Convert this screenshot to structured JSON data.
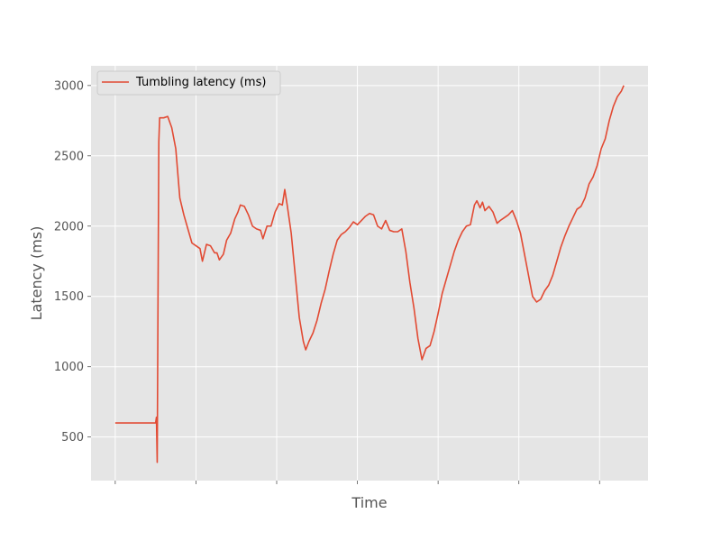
{
  "chart_data": {
    "type": "line",
    "xlabel": "Time",
    "ylabel": "Latency (ms)",
    "x_tick_labels": [
      "",
      "",
      "",
      "",
      "",
      "",
      ""
    ],
    "y_ticks": [
      500,
      1000,
      1500,
      2000,
      2500,
      3000
    ],
    "ylim": [
      190,
      3140
    ],
    "grid": true,
    "legend": "upper-left",
    "series": [
      {
        "name": "Tumbling latency (ms)",
        "color": "#E24A33",
        "points": [
          [
            0,
            600
          ],
          [
            2,
            600
          ],
          [
            4,
            600
          ],
          [
            5,
            600
          ],
          [
            5.1,
            640
          ],
          [
            5.2,
            320
          ],
          [
            5.3,
            1500
          ],
          [
            5.4,
            2600
          ],
          [
            5.5,
            2770
          ],
          [
            6,
            2770
          ],
          [
            6.5,
            2780
          ],
          [
            7,
            2700
          ],
          [
            7.5,
            2550
          ],
          [
            8,
            2200
          ],
          [
            8.5,
            2080
          ],
          [
            9,
            1980
          ],
          [
            9.5,
            1880
          ],
          [
            10,
            1860
          ],
          [
            10.5,
            1840
          ],
          [
            10.8,
            1750
          ],
          [
            11.3,
            1870
          ],
          [
            11.8,
            1860
          ],
          [
            12.3,
            1810
          ],
          [
            12.6,
            1810
          ],
          [
            12.9,
            1760
          ],
          [
            13.4,
            1800
          ],
          [
            13.8,
            1900
          ],
          [
            14.3,
            1950
          ],
          [
            14.8,
            2050
          ],
          [
            15.2,
            2100
          ],
          [
            15.5,
            2150
          ],
          [
            16,
            2140
          ],
          [
            16.5,
            2080
          ],
          [
            17,
            2000
          ],
          [
            17.5,
            1980
          ],
          [
            18,
            1970
          ],
          [
            18.3,
            1910
          ],
          [
            18.8,
            2000
          ],
          [
            19.3,
            2000
          ],
          [
            19.8,
            2100
          ],
          [
            20.3,
            2160
          ],
          [
            20.7,
            2150
          ],
          [
            21,
            2260
          ],
          [
            21.3,
            2150
          ],
          [
            21.8,
            1950
          ],
          [
            22.3,
            1650
          ],
          [
            22.8,
            1350
          ],
          [
            23.3,
            1180
          ],
          [
            23.6,
            1120
          ],
          [
            24,
            1180
          ],
          [
            24.5,
            1240
          ],
          [
            25,
            1330
          ],
          [
            25.5,
            1450
          ],
          [
            26,
            1550
          ],
          [
            26.5,
            1680
          ],
          [
            27,
            1800
          ],
          [
            27.5,
            1900
          ],
          [
            28,
            1940
          ],
          [
            28.5,
            1960
          ],
          [
            29,
            1990
          ],
          [
            29.5,
            2030
          ],
          [
            30,
            2010
          ],
          [
            30.5,
            2040
          ],
          [
            31,
            2070
          ],
          [
            31.5,
            2090
          ],
          [
            32,
            2080
          ],
          [
            32.5,
            2000
          ],
          [
            33,
            1980
          ],
          [
            33.5,
            2040
          ],
          [
            34,
            1970
          ],
          [
            34.5,
            1960
          ],
          [
            35,
            1960
          ],
          [
            35.5,
            1980
          ],
          [
            36,
            1820
          ],
          [
            36.5,
            1600
          ],
          [
            37,
            1420
          ],
          [
            37.5,
            1200
          ],
          [
            38,
            1050
          ],
          [
            38.5,
            1130
          ],
          [
            39,
            1150
          ],
          [
            39.5,
            1250
          ],
          [
            40,
            1380
          ],
          [
            40.5,
            1520
          ],
          [
            41,
            1620
          ],
          [
            41.5,
            1720
          ],
          [
            42,
            1820
          ],
          [
            42.5,
            1900
          ],
          [
            43,
            1960
          ],
          [
            43.5,
            2000
          ],
          [
            44,
            2010
          ],
          [
            44.5,
            2150
          ],
          [
            44.8,
            2180
          ],
          [
            45.2,
            2130
          ],
          [
            45.5,
            2170
          ],
          [
            45.8,
            2110
          ],
          [
            46.3,
            2140
          ],
          [
            46.8,
            2100
          ],
          [
            47.3,
            2020
          ],
          [
            47.7,
            2040
          ],
          [
            48.2,
            2060
          ],
          [
            48.7,
            2080
          ],
          [
            49.2,
            2110
          ],
          [
            49.7,
            2040
          ],
          [
            50.2,
            1950
          ],
          [
            50.7,
            1800
          ],
          [
            51.2,
            1650
          ],
          [
            51.7,
            1500
          ],
          [
            52.2,
            1460
          ],
          [
            52.7,
            1480
          ],
          [
            53.2,
            1540
          ],
          [
            53.7,
            1580
          ],
          [
            54.2,
            1650
          ],
          [
            54.7,
            1750
          ],
          [
            55.2,
            1850
          ],
          [
            55.7,
            1930
          ],
          [
            56.2,
            2000
          ],
          [
            56.7,
            2060
          ],
          [
            57.2,
            2120
          ],
          [
            57.7,
            2140
          ],
          [
            58.2,
            2200
          ],
          [
            58.7,
            2300
          ],
          [
            59.2,
            2350
          ],
          [
            59.7,
            2430
          ],
          [
            60.2,
            2550
          ],
          [
            60.7,
            2620
          ],
          [
            61.2,
            2750
          ],
          [
            61.7,
            2850
          ],
          [
            62.2,
            2920
          ],
          [
            62.7,
            2960
          ],
          [
            63,
            3000
          ]
        ]
      }
    ]
  }
}
